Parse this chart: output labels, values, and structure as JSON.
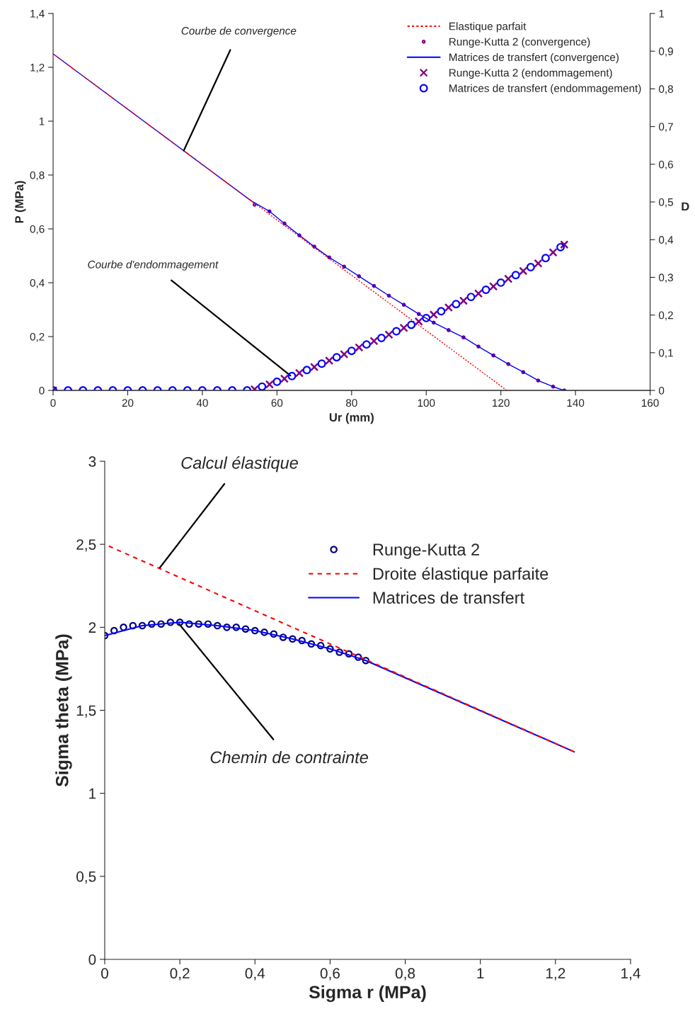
{
  "chart_data": [
    {
      "type": "line",
      "xlabel": "Ur (mm)",
      "ylabel": "P (MPa)",
      "y2label": "D",
      "xlim": [
        0,
        160
      ],
      "xticks": [
        0,
        20,
        40,
        60,
        80,
        100,
        120,
        140,
        160
      ],
      "ylim": [
        0,
        1.4
      ],
      "yticks": [
        0,
        {
          "value": 0.2,
          "label": "0,2"
        },
        {
          "value": 0.4,
          "label": "0,4"
        },
        {
          "value": 0.6,
          "label": "0,6"
        },
        {
          "value": 0.8,
          "label": "0,8"
        },
        1,
        {
          "value": 1.2,
          "label": "1,2"
        },
        {
          "value": 1.4,
          "label": "1,4"
        }
      ],
      "y2lim": [
        0,
        1
      ],
      "y2ticks": [
        0,
        {
          "value": 0.1,
          "label": "0,1"
        },
        {
          "value": 0.2,
          "label": "0,2"
        },
        {
          "value": 0.3,
          "label": "0,3"
        },
        {
          "value": 0.4,
          "label": "0,4"
        },
        {
          "value": 0.5,
          "label": "0,5"
        },
        {
          "value": 0.6,
          "label": "0,6"
        },
        {
          "value": 0.7,
          "label": "0,7"
        },
        {
          "value": 0.8,
          "label": "0,8"
        },
        {
          "value": 0.9,
          "label": "0,9"
        },
        1
      ],
      "grid": false,
      "legend": "top right",
      "annotations": [
        {
          "text": "Courbe de convergence",
          "x": 35,
          "y": 0.89
        },
        {
          "text": "Courbe d'endommagement",
          "x": 63.6,
          "y": 0.055
        }
      ],
      "series": [
        {
          "name": "Elastique parfait",
          "type": "line",
          "color": "#ff0000",
          "line_style": "dotted",
          "x": [
            0,
            121.6
          ],
          "values": [
            1.25,
            0
          ]
        },
        {
          "name": "Runge-Kutta 2 (convergence)",
          "type": "scatter",
          "marker": "circle",
          "color": "#800080",
          "x": [
            54,
            58,
            62,
            66,
            70,
            74,
            78,
            82,
            86,
            90,
            94,
            98,
            102,
            106,
            110,
            114,
            118,
            122,
            126,
            130,
            134,
            137
          ],
          "values": [
            0.69,
            0.665,
            0.62,
            0.576,
            0.534,
            0.494,
            0.46,
            0.424,
            0.388,
            0.352,
            0.318,
            0.284,
            0.252,
            0.224,
            0.197,
            0.163,
            0.13,
            0.098,
            0.068,
            0.037,
            0.014,
            0
          ]
        },
        {
          "name": "Matrices de transfert (convergence)",
          "type": "line",
          "color": "#0000ff",
          "line_style": "solid",
          "x": [
            0,
            53,
            58,
            62,
            66,
            70,
            74,
            78,
            82,
            86,
            90,
            94,
            98,
            102,
            106,
            110,
            114,
            118,
            122,
            126,
            130,
            134,
            137
          ],
          "values": [
            1.25,
            0.705,
            0.665,
            0.62,
            0.576,
            0.534,
            0.494,
            0.46,
            0.424,
            0.388,
            0.352,
            0.318,
            0.284,
            0.252,
            0.224,
            0.197,
            0.163,
            0.13,
            0.098,
            0.068,
            0.037,
            0.014,
            0
          ]
        },
        {
          "name": "Runge-Kutta 2 (endommagement)",
          "type": "scatter",
          "marker": "cross",
          "axis": "y2",
          "color": "#800080",
          "x": [
            0,
            54,
            58,
            62,
            66,
            70,
            74,
            78,
            82,
            86,
            90,
            94,
            98,
            102,
            106,
            110,
            114,
            118,
            122,
            126,
            130,
            134,
            137
          ],
          "values": [
            0,
            0.003,
            0.016,
            0.031,
            0.046,
            0.062,
            0.079,
            0.096,
            0.114,
            0.131,
            0.148,
            0.166,
            0.183,
            0.201,
            0.22,
            0.238,
            0.257,
            0.276,
            0.296,
            0.317,
            0.337,
            0.366,
            0.387
          ]
        },
        {
          "name": "Matrices de transfert (endommagement)",
          "type": "scatter",
          "marker": "circle",
          "axis": "y2",
          "color": "#0000ff",
          "x": [
            0,
            4,
            8,
            12,
            16,
            20,
            24,
            28,
            32,
            36,
            40,
            44,
            48,
            52,
            56,
            60,
            64,
            68,
            72,
            76,
            80,
            84,
            88,
            92,
            96,
            100,
            104,
            108,
            112,
            116,
            120,
            124,
            128,
            132,
            136
          ],
          "values": [
            0,
            0,
            0,
            0,
            0,
            0,
            0,
            0,
            0,
            0,
            0,
            0,
            0,
            0,
            0.01,
            0.023,
            0.038,
            0.054,
            0.071,
            0.088,
            0.105,
            0.122,
            0.139,
            0.157,
            0.174,
            0.192,
            0.21,
            0.229,
            0.248,
            0.267,
            0.286,
            0.306,
            0.327,
            0.351,
            0.38
          ]
        }
      ]
    },
    {
      "type": "line",
      "xlabel": "Sigma r (MPa)",
      "ylabel": "Sigma theta (MPa)",
      "xlim": [
        0,
        1.4
      ],
      "xticks": [
        0,
        {
          "value": 0.2,
          "label": "0,2"
        },
        {
          "value": 0.4,
          "label": "0,4"
        },
        {
          "value": 0.6,
          "label": "0,6"
        },
        {
          "value": 0.8,
          "label": "0,8"
        },
        1,
        {
          "value": 1.2,
          "label": "1,2"
        },
        {
          "value": 1.4,
          "label": "1,4"
        }
      ],
      "ylim": [
        0,
        3
      ],
      "yticks": [
        0,
        {
          "value": 0.5,
          "label": "0,5"
        },
        1,
        {
          "value": 1.5,
          "label": "1,5"
        },
        2,
        {
          "value": 2.5,
          "label": "2,5"
        },
        3
      ],
      "grid": false,
      "legend": "top right",
      "annotations": [
        {
          "text": "Calcul élastique",
          "x": 0.147,
          "y": 2.36
        },
        {
          "text": "Chemin de contrainte",
          "x": 0.198,
          "y": 2.02
        }
      ],
      "series": [
        {
          "name": "Runge-Kutta 2",
          "type": "scatter",
          "marker": "circle",
          "color": "#000080",
          "x": [
            0,
            0.025,
            0.05,
            0.075,
            0.1,
            0.125,
            0.15,
            0.175,
            0.2,
            0.225,
            0.25,
            0.275,
            0.3,
            0.325,
            0.35,
            0.375,
            0.4,
            0.425,
            0.45,
            0.475,
            0.5,
            0.525,
            0.55,
            0.575,
            0.6,
            0.625,
            0.65,
            0.675,
            0.695
          ],
          "values": [
            1.95,
            1.98,
            2.0,
            2.01,
            2.01,
            2.02,
            2.02,
            2.03,
            2.03,
            2.02,
            2.02,
            2.02,
            2.01,
            2.0,
            2.0,
            1.99,
            1.98,
            1.97,
            1.96,
            1.94,
            1.93,
            1.92,
            1.9,
            1.89,
            1.87,
            1.85,
            1.84,
            1.82,
            1.8
          ]
        },
        {
          "name": "Droite élastique parfaite",
          "type": "line",
          "color": "#ff0000",
          "line_style": "dashed",
          "x": [
            0,
            1.25
          ],
          "values": [
            2.5,
            1.25
          ]
        },
        {
          "name": "Matrices de transfert",
          "type": "line",
          "color": "#0000ff",
          "line_style": "solid",
          "x": [
            0,
            0.1,
            0.2,
            0.3,
            0.4,
            0.5,
            0.6,
            0.695,
            1.25
          ],
          "values": [
            1.95,
            2.01,
            2.03,
            2.01,
            1.98,
            1.93,
            1.87,
            1.8,
            1.25
          ]
        }
      ]
    }
  ]
}
